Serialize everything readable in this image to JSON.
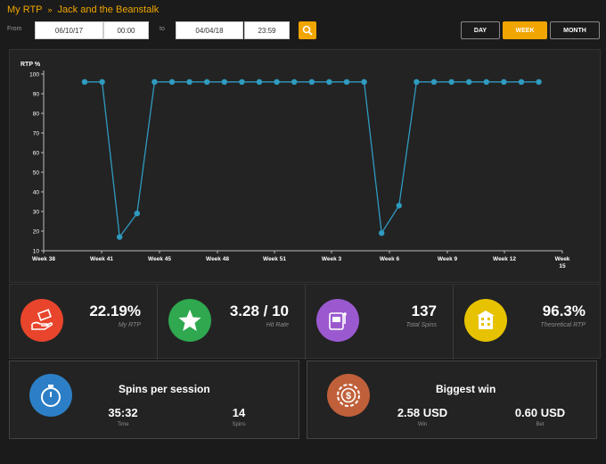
{
  "breadcrumb": {
    "root": "My RTP",
    "separator": "»",
    "current": "Jack and the Beanstalk"
  },
  "filter": {
    "from_label": "From",
    "from_date": "06/10/17",
    "from_time": "00:00",
    "to_label": "to",
    "to_date": "04/04/18",
    "to_time": "23:59"
  },
  "periods": {
    "day": "DAY",
    "week": "WEEK",
    "month": "MONTH",
    "active": "WEEK"
  },
  "chart_data": {
    "type": "line",
    "ylabel": "RTP %",
    "ylim": [
      10,
      100
    ],
    "yticks": [
      100,
      90,
      80,
      70,
      60,
      50,
      40,
      30,
      20,
      10
    ],
    "x_tick_labels": [
      "Week 38",
      "Week 41",
      "Week 45",
      "Week 48",
      "Week 51",
      "Week 3",
      "Week 6",
      "Week 9",
      "Week 12",
      "Week 15"
    ],
    "series": [
      {
        "values": [
          96,
          96,
          17,
          29,
          96,
          96,
          96,
          96,
          96,
          96,
          96,
          96,
          96,
          96,
          96,
          96,
          96,
          19,
          33,
          96,
          96,
          96,
          96,
          96,
          96,
          96,
          96
        ]
      }
    ],
    "color": "#2f9bc0",
    "grid": false
  },
  "stats": [
    {
      "value": "22.19%",
      "caption": "My RTP",
      "color": "#e8452c",
      "icon": "hand-money-icon"
    },
    {
      "value": "3.28 / 10",
      "caption": "Hit Rate",
      "color": "#2fa84f",
      "icon": "star-icon"
    },
    {
      "value": "137",
      "caption": "Total Spins",
      "color": "#9b59d0",
      "icon": "slot-machine-icon"
    },
    {
      "value": "96.3%",
      "caption": "Theoretical RTP",
      "color": "#e6c200",
      "icon": "building-icon"
    }
  ],
  "spins_session": {
    "title": "Spins per session",
    "time_value": "35:32",
    "time_caption": "Time",
    "spins_value": "14",
    "spins_caption": "Spins",
    "color": "#2c7fc6",
    "icon": "stopwatch-icon"
  },
  "biggest_win": {
    "title": "Biggest win",
    "win_value": "2.58 USD",
    "win_caption": "Win",
    "bet_value": "0.60 USD",
    "bet_caption": "Bet",
    "color": "#c0603a",
    "icon": "casino-chip-icon"
  }
}
